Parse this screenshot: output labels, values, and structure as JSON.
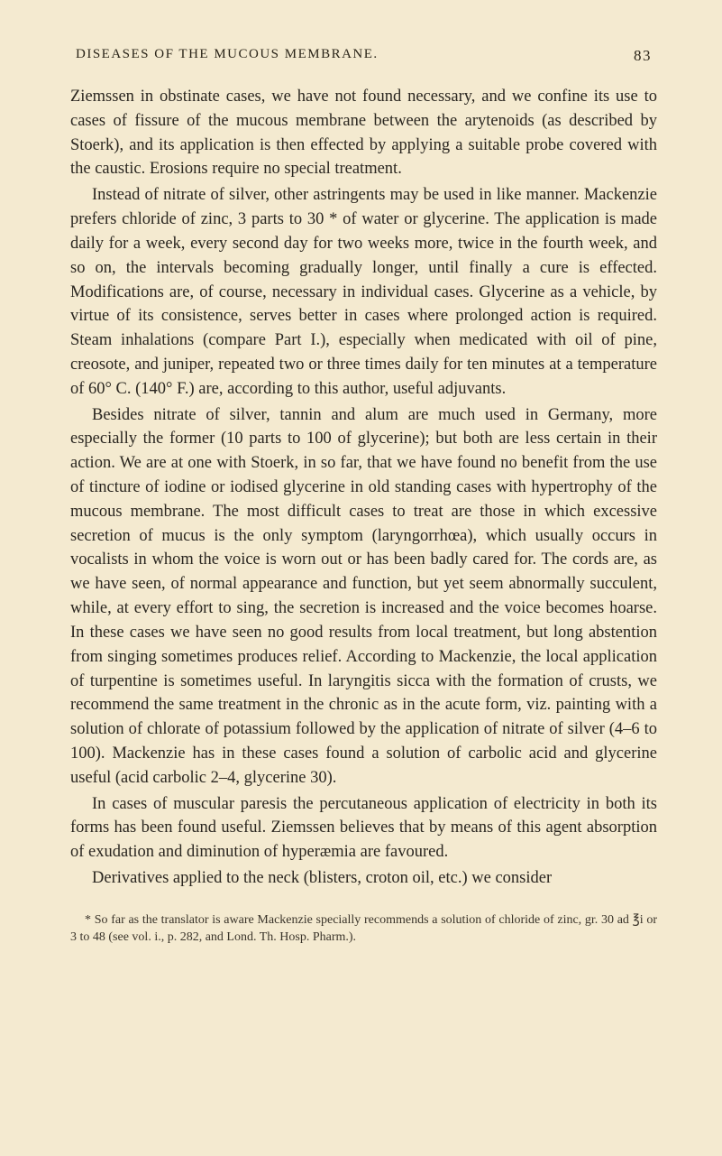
{
  "header": {
    "title": "DISEASES OF THE MUCOUS MEMBRANE.",
    "page_number": "83"
  },
  "paragraphs": {
    "p1": "Ziemssen in obstinate cases, we have not found necessary, and we confine its use to cases of fissure of the mucous membrane between the arytenoids (as described by Stoerk), and its application is then effected by applying a suitable probe covered with the caustic. Erosions require no special treatment.",
    "p2": "Instead of nitrate of silver, other astringents may be used in like manner. Mackenzie prefers chloride of zinc, 3 parts to 30 * of water or glycerine. The application is made daily for a week, every second day for two weeks more, twice in the fourth week, and so on, the intervals becoming gradually longer, until finally a cure is effected. Modifications are, of course, necessary in individual cases. Glycerine as a vehicle, by virtue of its consistence, serves better in cases where prolonged action is required. Steam inhalations (compare Part I.), especially when medicated with oil of pine, creosote, and juniper, repeated two or three times daily for ten minutes at a temperature of 60° C. (140° F.) are, according to this author, useful adjuvants.",
    "p3": "Besides nitrate of silver, tannin and alum are much used in Germany, more especially the former (10 parts to 100 of glycerine); but both are less certain in their action. We are at one with Stoerk, in so far, that we have found no benefit from the use of tincture of iodine or iodised glycerine in old standing cases with hypertrophy of the mucous membrane. The most difficult cases to treat are those in which excessive secretion of mucus is the only symptom (laryngorrhœa), which usually occurs in vocalists in whom the voice is worn out or has been badly cared for. The cords are, as we have seen, of normal appearance and function, but yet seem abnormally succulent, while, at every effort to sing, the secretion is increased and the voice becomes hoarse. In these cases we have seen no good results from local treatment, but long abstention from singing sometimes produces relief. According to Mackenzie, the local application of turpentine is sometimes useful. In laryngitis sicca with the formation of crusts, we recommend the same treatment in the chronic as in the acute form, viz. painting with a solution of chlorate of potassium followed by the application of nitrate of silver (4–6 to 100). Mackenzie has in these cases found a solution of carbolic acid and glycerine useful (acid carbolic 2–4, glycerine 30).",
    "p4": "In cases of muscular paresis the percutaneous application of electricity in both its forms has been found useful. Ziemssen believes that by means of this agent absorption of exudation and diminution of hyperæmia are favoured.",
    "p5": "Derivatives applied to the neck (blisters, croton oil, etc.) we consider"
  },
  "footnote": "* So far as the translator is aware Mackenzie specially recommends a solution of chloride of zinc, gr. 30 ad ℥i or 3 to 48 (see vol. i., p. 282, and Lond. Th. Hosp. Pharm.).",
  "colors": {
    "background": "#f4ead0",
    "text": "#2a2418"
  }
}
